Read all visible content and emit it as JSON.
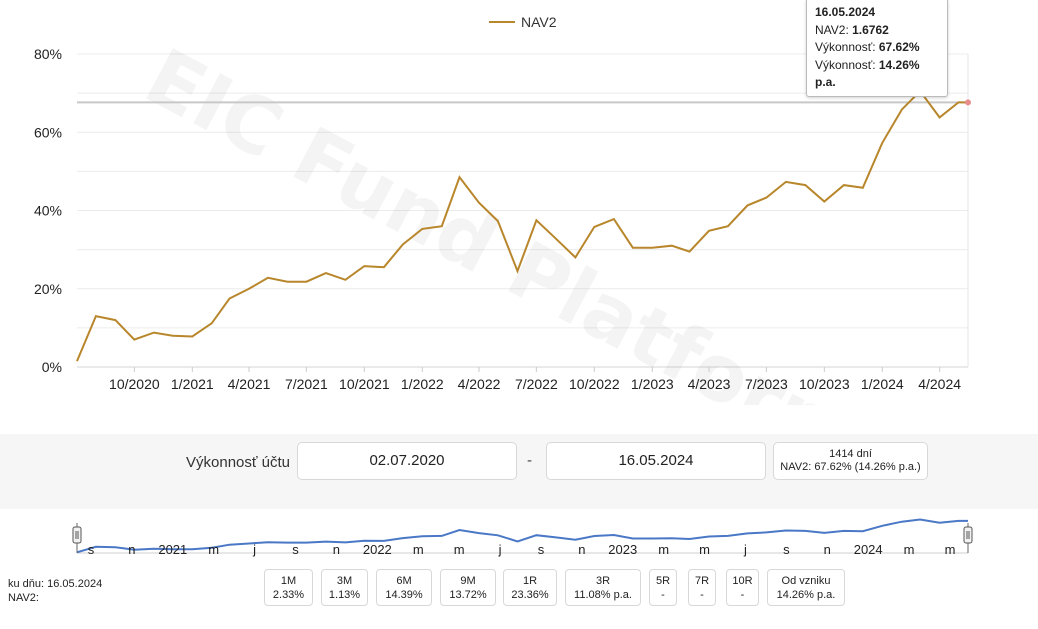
{
  "chart_data": {
    "type": "line",
    "title": "",
    "xlabel": "",
    "ylabel": "",
    "ylim": [
      0,
      80
    ],
    "y_ticks": [
      "0%",
      "20%",
      "40%",
      "60%",
      "80%"
    ],
    "x_ticks": [
      "10/2020",
      "1/2021",
      "4/2021",
      "7/2021",
      "10/2021",
      "1/2022",
      "4/2022",
      "7/2022",
      "10/2022",
      "1/2023",
      "4/2023",
      "7/2023",
      "10/2023",
      "1/2024",
      "4/2024"
    ],
    "grid": true,
    "legend": "top-center",
    "series": [
      {
        "name": "NAV2",
        "color": "#b8862b",
        "x": [
          "2020-07-02",
          "2020-08-01",
          "2020-09-01",
          "2020-10-01",
          "2020-11-01",
          "2020-12-01",
          "2021-01-01",
          "2021-02-01",
          "2021-03-01",
          "2021-04-01",
          "2021-05-01",
          "2021-06-01",
          "2021-07-01",
          "2021-08-01",
          "2021-09-01",
          "2021-10-01",
          "2021-11-01",
          "2021-12-01",
          "2022-01-01",
          "2022-02-01",
          "2022-03-01",
          "2022-04-01",
          "2022-05-01",
          "2022-06-01",
          "2022-07-01",
          "2022-08-01",
          "2022-09-01",
          "2022-10-01",
          "2022-11-01",
          "2022-12-01",
          "2023-01-01",
          "2023-02-01",
          "2023-03-01",
          "2023-04-01",
          "2023-05-01",
          "2023-06-01",
          "2023-07-01",
          "2023-08-01",
          "2023-09-01",
          "2023-10-01",
          "2023-11-01",
          "2023-12-01",
          "2024-01-01",
          "2024-02-01",
          "2024-03-01",
          "2024-04-01",
          "2024-05-01",
          "2024-05-16"
        ],
        "values": [
          1.5,
          13.0,
          12.0,
          7.0,
          8.8,
          8.0,
          7.8,
          11.2,
          17.5,
          20.0,
          22.8,
          21.8,
          21.8,
          24.0,
          22.3,
          25.8,
          25.5,
          31.3,
          35.3,
          36.0,
          48.5,
          42.0,
          37.3,
          24.5,
          37.5,
          32.8,
          28.0,
          35.8,
          37.8,
          30.5,
          30.5,
          31.0,
          29.5,
          34.8,
          36.0,
          41.3,
          43.3,
          47.3,
          46.5,
          42.3,
          46.5,
          45.8,
          57.3,
          65.8,
          70.5,
          63.8,
          67.62,
          67.62
        ]
      }
    ],
    "crosshair_value": 67.62
  },
  "watermark": "EIC Fund Platform",
  "tooltip": {
    "date": "16.05.2024",
    "nav_label": "NAV2: ",
    "nav_value": "1.6762",
    "perf_label": "Výkonnosť: ",
    "perf_value": "67.62%",
    "perf_pa_label": "Výkonnosť: ",
    "perf_pa_value": "14.26% p.a."
  },
  "performance": {
    "label": "Výkonnosť účtu",
    "date_from": "02.07.2020",
    "separator": "-",
    "date_to": "16.05.2024",
    "days": "1414 dní",
    "summary": "NAV2: 67.62% (14.26% p.a.)"
  },
  "navigator": {
    "color": "#4a78c6",
    "labels": [
      "s",
      "n",
      "2021",
      "m",
      "j",
      "s",
      "n",
      "2022",
      "m",
      "m",
      "j",
      "s",
      "n",
      "2023",
      "m",
      "m",
      "j",
      "s",
      "n",
      "2024",
      "m",
      "m"
    ]
  },
  "footer": {
    "as_of": "ku dňu: 16.05.2024",
    "nav_label": "NAV2:"
  },
  "periods": [
    {
      "label": "1M",
      "value": "2.33%"
    },
    {
      "label": "3M",
      "value": "1.13%"
    },
    {
      "label": "6M",
      "value": "14.39%"
    },
    {
      "label": "9M",
      "value": "13.72%"
    },
    {
      "label": "1R",
      "value": "23.36%"
    },
    {
      "label": "3R",
      "value": "11.08% p.a."
    },
    {
      "label": "5R",
      "value": "-"
    },
    {
      "label": "7R",
      "value": "-"
    },
    {
      "label": "10R",
      "value": "-"
    },
    {
      "label": "Od vzniku",
      "value": "14.26% p.a."
    }
  ]
}
